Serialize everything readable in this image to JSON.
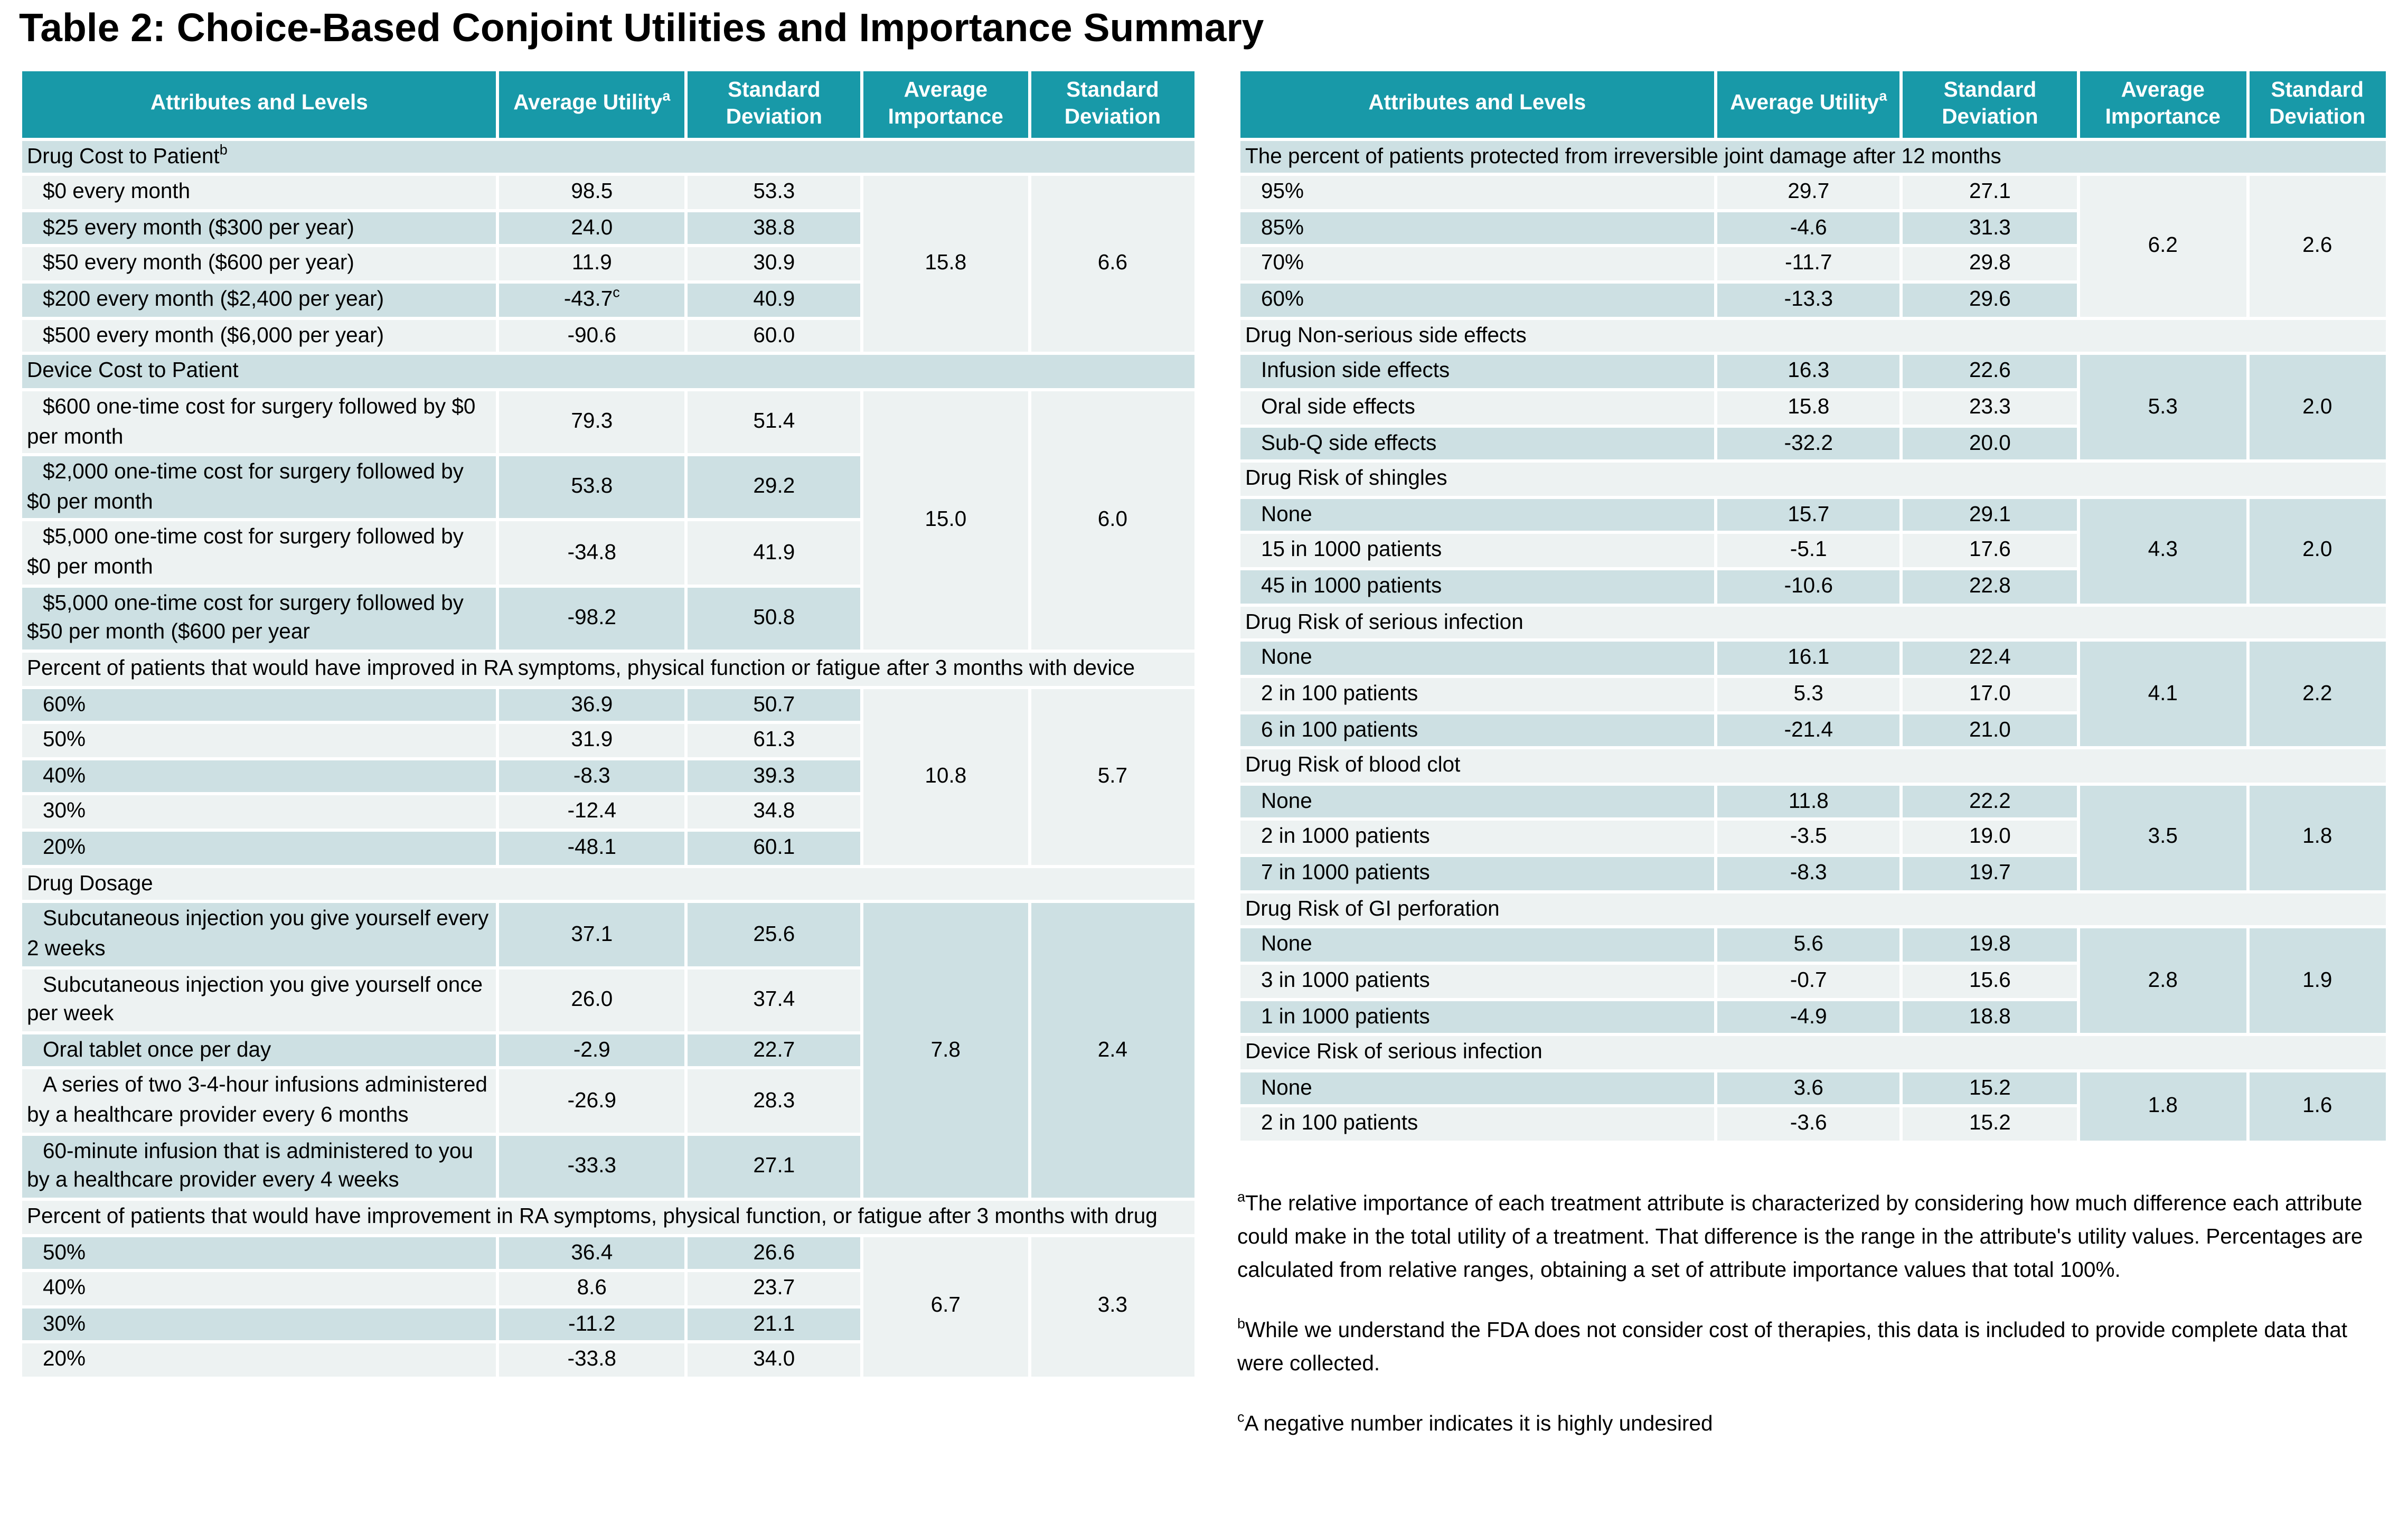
{
  "title": "Table 2: Choice-Based Conjoint Utilities and Importance Summary",
  "colors": {
    "header_bg": "#1899A8",
    "row_tinted": "#cde0e3",
    "row_light": "#edf2f2"
  },
  "columns": [
    {
      "label": "Attributes and Levels"
    },
    {
      "label": "Average Utility",
      "sup": "a"
    },
    {
      "label": "Standard Deviation"
    },
    {
      "label": "Average Importance"
    },
    {
      "label": "Standard Deviation"
    }
  ],
  "left_table": {
    "sections": [
      {
        "header": "Drug Cost to Patient",
        "header_sup": "b",
        "importance": "15.8",
        "importance_sd": "6.6",
        "merged_tinted": false,
        "rows": [
          {
            "label": "$0 every month",
            "utility": "98.5",
            "sd": "53.3"
          },
          {
            "label": "$25 every month ($300 per year)",
            "utility": "24.0",
            "sd": "38.8"
          },
          {
            "label": "$50 every month ($600 per year)",
            "utility": "11.9",
            "sd": "30.9"
          },
          {
            "label": "$200 every month ($2,400 per year)",
            "utility": "-43.7",
            "utility_sup": "c",
            "sd": "40.9"
          },
          {
            "label": "$500 every month ($6,000 per year)",
            "utility": "-90.6",
            "sd": "60.0"
          }
        ]
      },
      {
        "header": "Device Cost to Patient",
        "importance": "15.0",
        "importance_sd": "6.0",
        "merged_tinted": false,
        "rows": [
          {
            "label": "$600 one-time cost for surgery followed by $0 per month",
            "utility": "79.3",
            "sd": "51.4"
          },
          {
            "label": "$2,000 one-time cost for surgery followed by $0 per month",
            "utility": "53.8",
            "sd": "29.2"
          },
          {
            "label": "$5,000 one-time cost for surgery followed by $0 per month",
            "utility": "-34.8",
            "sd": "41.9"
          },
          {
            "label": "$5,000 one-time cost for surgery followed by $50 per month ($600 per year",
            "utility": "-98.2",
            "sd": "50.8"
          }
        ]
      },
      {
        "header": "Percent of patients that would have improved in RA symptoms, physical function or fatigue after 3 months with device",
        "importance": "10.8",
        "importance_sd": "5.7",
        "merged_tinted": false,
        "rows": [
          {
            "label": "60%",
            "utility": "36.9",
            "sd": "50.7"
          },
          {
            "label": "50%",
            "utility": "31.9",
            "sd": "61.3"
          },
          {
            "label": "40%",
            "utility": "-8.3",
            "sd": "39.3"
          },
          {
            "label": "30%",
            "utility": "-12.4",
            "sd": "34.8"
          },
          {
            "label": "20%",
            "utility": "-48.1",
            "sd": "60.1"
          }
        ]
      },
      {
        "header": "Drug Dosage",
        "importance": "7.8",
        "importance_sd": "2.4",
        "merged_tinted": true,
        "rows": [
          {
            "label": "Subcutaneous injection you give yourself every 2 weeks",
            "utility": "37.1",
            "sd": "25.6"
          },
          {
            "label": "Subcutaneous injection you give yourself once per week",
            "utility": "26.0",
            "sd": "37.4"
          },
          {
            "label": "Oral tablet once per day",
            "utility": "-2.9",
            "sd": "22.7"
          },
          {
            "label": "A series of two 3-4-hour infusions administered by a healthcare provider every 6 months",
            "utility": "-26.9",
            "sd": "28.3"
          },
          {
            "label": "60-minute infusion that is administered to you by a healthcare provider every 4 weeks",
            "utility": "-33.3",
            "sd": "27.1"
          }
        ]
      },
      {
        "header": "Percent of patients that would have improvement in RA symptoms, physical function, or fatigue after 3 months with drug",
        "importance": "6.7",
        "importance_sd": "3.3",
        "merged_tinted": false,
        "rows": [
          {
            "label": "50%",
            "utility": "36.4",
            "sd": "26.6"
          },
          {
            "label": "40%",
            "utility": "8.6",
            "sd": "23.7"
          },
          {
            "label": "30%",
            "utility": "-11.2",
            "sd": "21.1"
          },
          {
            "label": "20%",
            "utility": "-33.8",
            "sd": "34.0"
          }
        ]
      }
    ]
  },
  "right_table": {
    "sections": [
      {
        "header": "The percent of patients protected from irreversible joint damage after 12 months",
        "importance": "6.2",
        "importance_sd": "2.6",
        "merged_tinted": false,
        "rows": [
          {
            "label": "95%",
            "utility": "29.7",
            "sd": "27.1"
          },
          {
            "label": "85%",
            "utility": "-4.6",
            "sd": "31.3"
          },
          {
            "label": "70%",
            "utility": "-11.7",
            "sd": "29.8"
          },
          {
            "label": "60%",
            "utility": "-13.3",
            "sd": "29.6"
          }
        ]
      },
      {
        "header": "Drug Non-serious side effects",
        "importance": "5.3",
        "importance_sd": "2.0",
        "merged_tinted": true,
        "rows": [
          {
            "label": "Infusion side effects",
            "utility": "16.3",
            "sd": "22.6"
          },
          {
            "label": "Oral side effects",
            "utility": "15.8",
            "sd": "23.3"
          },
          {
            "label": "Sub-Q side effects",
            "utility": "-32.2",
            "sd": "20.0"
          }
        ]
      },
      {
        "header": "Drug Risk of shingles",
        "importance": "4.3",
        "importance_sd": "2.0",
        "merged_tinted": true,
        "rows": [
          {
            "label": "None",
            "utility": "15.7",
            "sd": "29.1"
          },
          {
            "label": "15 in 1000 patients",
            "utility": "-5.1",
            "sd": "17.6"
          },
          {
            "label": "45 in 1000 patients",
            "utility": "-10.6",
            "sd": "22.8"
          }
        ]
      },
      {
        "header": "Drug Risk of serious infection",
        "importance": "4.1",
        "importance_sd": "2.2",
        "merged_tinted": true,
        "rows": [
          {
            "label": "None",
            "utility": "16.1",
            "sd": "22.4"
          },
          {
            "label": "2 in 100 patients",
            "utility": "5.3",
            "sd": "17.0"
          },
          {
            "label": "6 in 100 patients",
            "utility": "-21.4",
            "sd": "21.0"
          }
        ]
      },
      {
        "header": "Drug Risk of blood clot",
        "importance": "3.5",
        "importance_sd": "1.8",
        "merged_tinted": true,
        "rows": [
          {
            "label": "None",
            "utility": "11.8",
            "sd": "22.2"
          },
          {
            "label": "2 in 1000 patients",
            "utility": "-3.5",
            "sd": "19.0"
          },
          {
            "label": "7 in 1000 patients",
            "utility": "-8.3",
            "sd": "19.7"
          }
        ]
      },
      {
        "header": "Drug Risk of GI perforation",
        "importance": "2.8",
        "importance_sd": "1.9",
        "merged_tinted": true,
        "rows": [
          {
            "label": "None",
            "utility": "5.6",
            "sd": "19.8"
          },
          {
            "label": "3 in 1000 patients",
            "utility": "-0.7",
            "sd": "15.6"
          },
          {
            "label": "1 in 1000 patients",
            "utility": "-4.9",
            "sd": "18.8"
          }
        ]
      },
      {
        "header": "Device Risk of serious infection",
        "importance": "1.8",
        "importance_sd": "1.6",
        "merged_tinted": true,
        "rows": [
          {
            "label": "None",
            "utility": "3.6",
            "sd": "15.2"
          },
          {
            "label": "2 in 100 patients",
            "utility": "-3.6",
            "sd": "15.2"
          }
        ]
      }
    ]
  },
  "footnotes": [
    {
      "sup": "a",
      "text": "The relative importance of each treatment attribute is characterized by considering how much difference each attribute could make in the total utility of a treatment. That difference is the range in the attribute's utility values. Percentages are calculated from relative ranges, obtaining a set of attribute importance values that total 100%."
    },
    {
      "sup": "b",
      "text": "While we understand the FDA does not consider cost of therapies, this data is included to provide complete data that were collected."
    },
    {
      "sup": "c",
      "text": "A negative number indicates it is highly undesired"
    }
  ]
}
